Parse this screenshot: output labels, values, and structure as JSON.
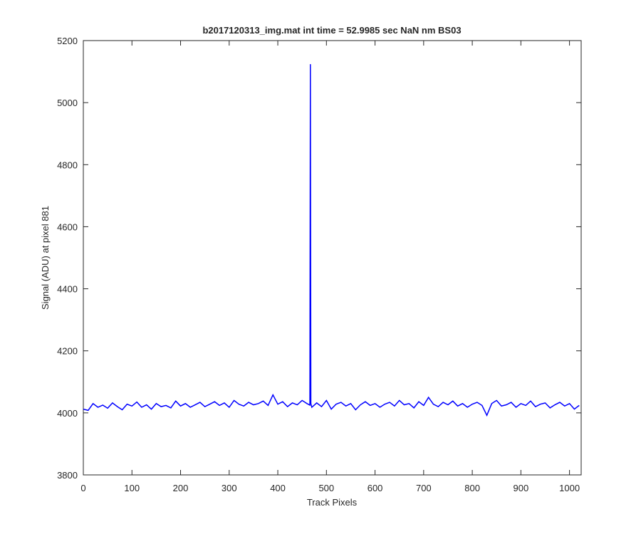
{
  "chart_data": {
    "type": "line",
    "title": "b2017120313_img.mat int time = 52.9985 sec  NaN nm BS03",
    "xlabel": "Track Pixels",
    "ylabel": "Signal (ADU) at pixel 881",
    "xlim": [
      0,
      1024
    ],
    "ylim": [
      3800,
      5200
    ],
    "xticks": [
      0,
      100,
      200,
      300,
      400,
      500,
      600,
      700,
      800,
      900,
      1000
    ],
    "yticks": [
      3800,
      4000,
      4200,
      4400,
      4600,
      4800,
      5000,
      5200
    ],
    "series": [
      {
        "color": "#0000ff",
        "x": [
          0,
          10,
          20,
          30,
          40,
          50,
          60,
          70,
          80,
          90,
          100,
          110,
          120,
          130,
          140,
          150,
          160,
          170,
          180,
          190,
          200,
          210,
          220,
          230,
          240,
          250,
          260,
          270,
          280,
          290,
          300,
          310,
          320,
          330,
          340,
          350,
          360,
          370,
          380,
          390,
          400,
          410,
          420,
          430,
          440,
          450,
          460,
          466,
          467,
          468,
          470,
          480,
          490,
          500,
          510,
          520,
          530,
          540,
          550,
          560,
          570,
          580,
          590,
          600,
          610,
          620,
          630,
          640,
          650,
          660,
          670,
          680,
          690,
          700,
          710,
          720,
          730,
          740,
          750,
          760,
          770,
          780,
          790,
          800,
          810,
          820,
          830,
          840,
          850,
          860,
          870,
          880,
          890,
          900,
          910,
          920,
          930,
          940,
          950,
          960,
          970,
          980,
          990,
          1000,
          1010,
          1020
        ],
        "values": [
          4012,
          4008,
          4030,
          4018,
          4025,
          4015,
          4032,
          4020,
          4010,
          4028,
          4022,
          4035,
          4018,
          4026,
          4012,
          4030,
          4020,
          4024,
          4016,
          4038,
          4022,
          4030,
          4018,
          4026,
          4034,
          4020,
          4028,
          4036,
          4024,
          4032,
          4018,
          4040,
          4028,
          4022,
          4034,
          4026,
          4030,
          4038,
          4024,
          4058,
          4028,
          4036,
          4020,
          4032,
          4026,
          4040,
          4030,
          4025,
          5124,
          4030,
          4018,
          4032,
          4020,
          4040,
          4012,
          4028,
          4034,
          4022,
          4030,
          4010,
          4026,
          4036,
          4024,
          4030,
          4018,
          4028,
          4034,
          4022,
          4040,
          4026,
          4030,
          4016,
          4036,
          4024,
          4050,
          4028,
          4020,
          4034,
          4026,
          4038,
          4022,
          4030,
          4018,
          4028,
          4034,
          4024,
          3992,
          4030,
          4040,
          4022,
          4026,
          4034,
          4018,
          4030,
          4024,
          4038,
          4020,
          4028,
          4032,
          4016,
          4026,
          4034,
          4022,
          4030,
          4012,
          4024
        ]
      }
    ]
  }
}
